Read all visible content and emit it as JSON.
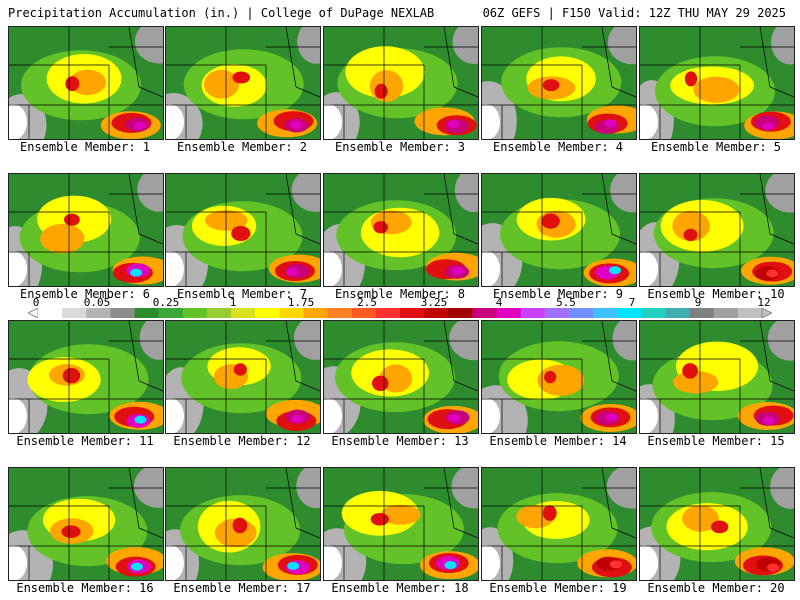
{
  "header": {
    "title_left": "Precipitation Accumulation (in.) | College of DuPage NEXLAB",
    "title_right": "06Z GEFS | F150 Valid: 12Z THU MAY 29 2025"
  },
  "colorbar": {
    "tick_labels": [
      "0",
      "0.05",
      "0.25",
      "1",
      "1.75",
      "2.5",
      "3.25",
      "4",
      "5.5",
      "7",
      "9",
      "12"
    ],
    "colors": [
      "#ffffff",
      "#d9d9d9",
      "#b3b3b3",
      "#8c8c8c",
      "#2e8b2e",
      "#3aa83a",
      "#63c227",
      "#9acd32",
      "#d9e021",
      "#ffff00",
      "#ffd700",
      "#ffa500",
      "#ff7f27",
      "#ff5a1f",
      "#ff3030",
      "#e01010",
      "#c00000",
      "#a00000",
      "#c8007a",
      "#e000c0",
      "#c840ff",
      "#a070ff",
      "#7090ff",
      "#40c0ff",
      "#00e5ff",
      "#20d0c0",
      "#40b0b0",
      "#808080",
      "#a0a0a0",
      "#c0c0c0"
    ]
  },
  "members": [
    {
      "label": "Ensemble Member: 1",
      "peak": "magenta"
    },
    {
      "label": "Ensemble Member: 2",
      "peak": "magenta"
    },
    {
      "label": "Ensemble Member: 3",
      "peak": "magenta"
    },
    {
      "label": "Ensemble Member: 4",
      "peak": "magenta"
    },
    {
      "label": "Ensemble Member: 5",
      "peak": "magenta"
    },
    {
      "label": "Ensemble Member: 6",
      "peak": "cyan"
    },
    {
      "label": "Ensemble Member: 7",
      "peak": "magenta"
    },
    {
      "label": "Ensemble Member: 8",
      "peak": "magenta"
    },
    {
      "label": "Ensemble Member: 9",
      "peak": "cyan"
    },
    {
      "label": "Ensemble Member: 10",
      "peak": "red"
    },
    {
      "label": "Ensemble Member: 11",
      "peak": "cyan"
    },
    {
      "label": "Ensemble Member: 12",
      "peak": "magenta"
    },
    {
      "label": "Ensemble Member: 13",
      "peak": "magenta"
    },
    {
      "label": "Ensemble Member: 14",
      "peak": "magenta"
    },
    {
      "label": "Ensemble Member: 15",
      "peak": "magenta"
    },
    {
      "label": "Ensemble Member: 16",
      "peak": "cyan"
    },
    {
      "label": "Ensemble Member: 17",
      "peak": "cyan"
    },
    {
      "label": "Ensemble Member: 18",
      "peak": "cyan"
    },
    {
      "label": "Ensemble Member: 19",
      "peak": "red"
    },
    {
      "label": "Ensemble Member: 20",
      "peak": "red"
    }
  ]
}
